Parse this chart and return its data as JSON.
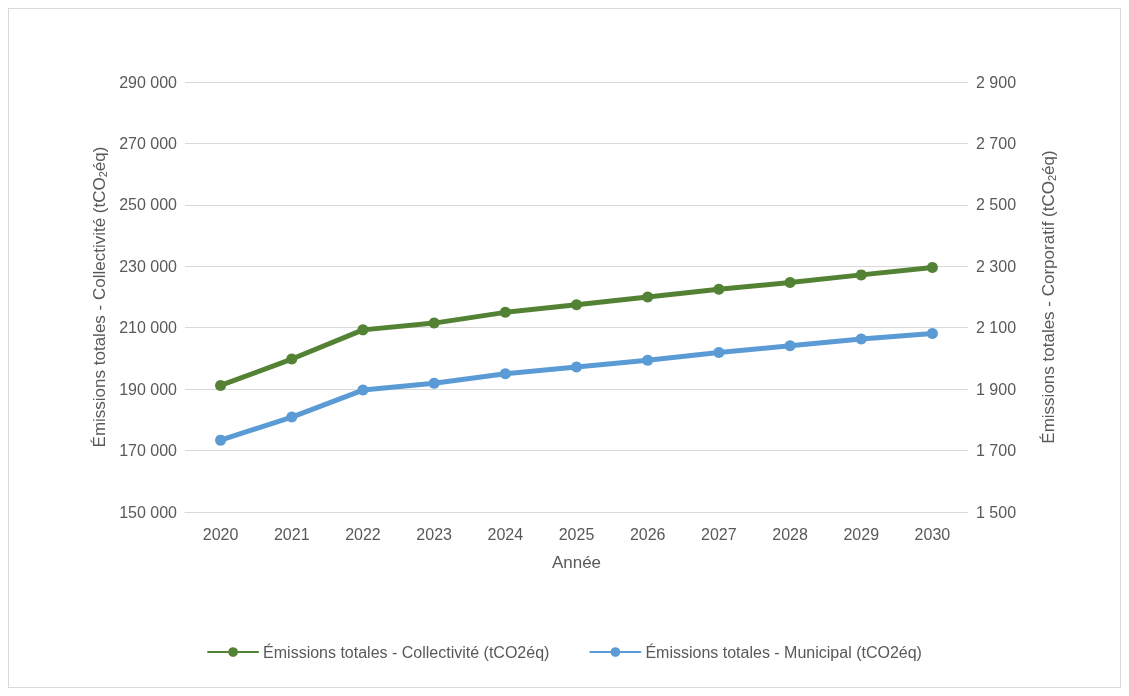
{
  "chart_data": {
    "type": "line",
    "categories": [
      "2020",
      "2021",
      "2022",
      "2023",
      "2024",
      "2025",
      "2026",
      "2027",
      "2028",
      "2029",
      "2030"
    ],
    "xlabel": "Année",
    "ylabel": "Émissions totales - Collectivité (tCO$_{2}$éq)",
    "y2label": "Émissions totales - Corporatif (tCO$_{2}$éq)",
    "series": [
      {
        "name": "Émissions totales - Collectivité (tCO2éq)",
        "color": "#548235",
        "values": [
          191200,
          199800,
          209300,
          211500,
          215000,
          217500,
          220000,
          222500,
          224700,
          227200,
          229600
        ]
      },
      {
        "name": "Émissions totales - Municipal (tCO2éq)",
        "color": "#5b9bd5",
        "axis": "y2",
        "values": [
          1734,
          1809,
          1897,
          1919,
          1950,
          1972,
          1994,
          2019,
          2041,
          2063,
          2081
        ]
      }
    ],
    "ylim": [
      150000,
      290000
    ],
    "yticks": [
      {
        "value": 150000,
        "label": "150 000"
      },
      {
        "value": 170000,
        "label": "170 000"
      },
      {
        "value": 190000,
        "label": "190 000"
      },
      {
        "value": 210000,
        "label": "210 000"
      },
      {
        "value": 230000,
        "label": "230 000"
      },
      {
        "value": 250000,
        "label": "250 000"
      },
      {
        "value": 270000,
        "label": "270 000"
      },
      {
        "value": 290000,
        "label": "290 000"
      }
    ],
    "y2lim": [
      1500,
      2900
    ],
    "y2ticks": [
      {
        "value": 1500,
        "label": "1 500"
      },
      {
        "value": 1700,
        "label": "1 700"
      },
      {
        "value": 1900,
        "label": "1 900"
      },
      {
        "value": 2100,
        "label": "2 100"
      },
      {
        "value": 2300,
        "label": "2 300"
      },
      {
        "value": 2500,
        "label": "2 500"
      },
      {
        "value": 2700,
        "label": "2 700"
      },
      {
        "value": 2900,
        "label": "2 900"
      }
    ],
    "grid": "y",
    "legend": "bottom",
    "marker": "circle",
    "line_style": "solid"
  }
}
